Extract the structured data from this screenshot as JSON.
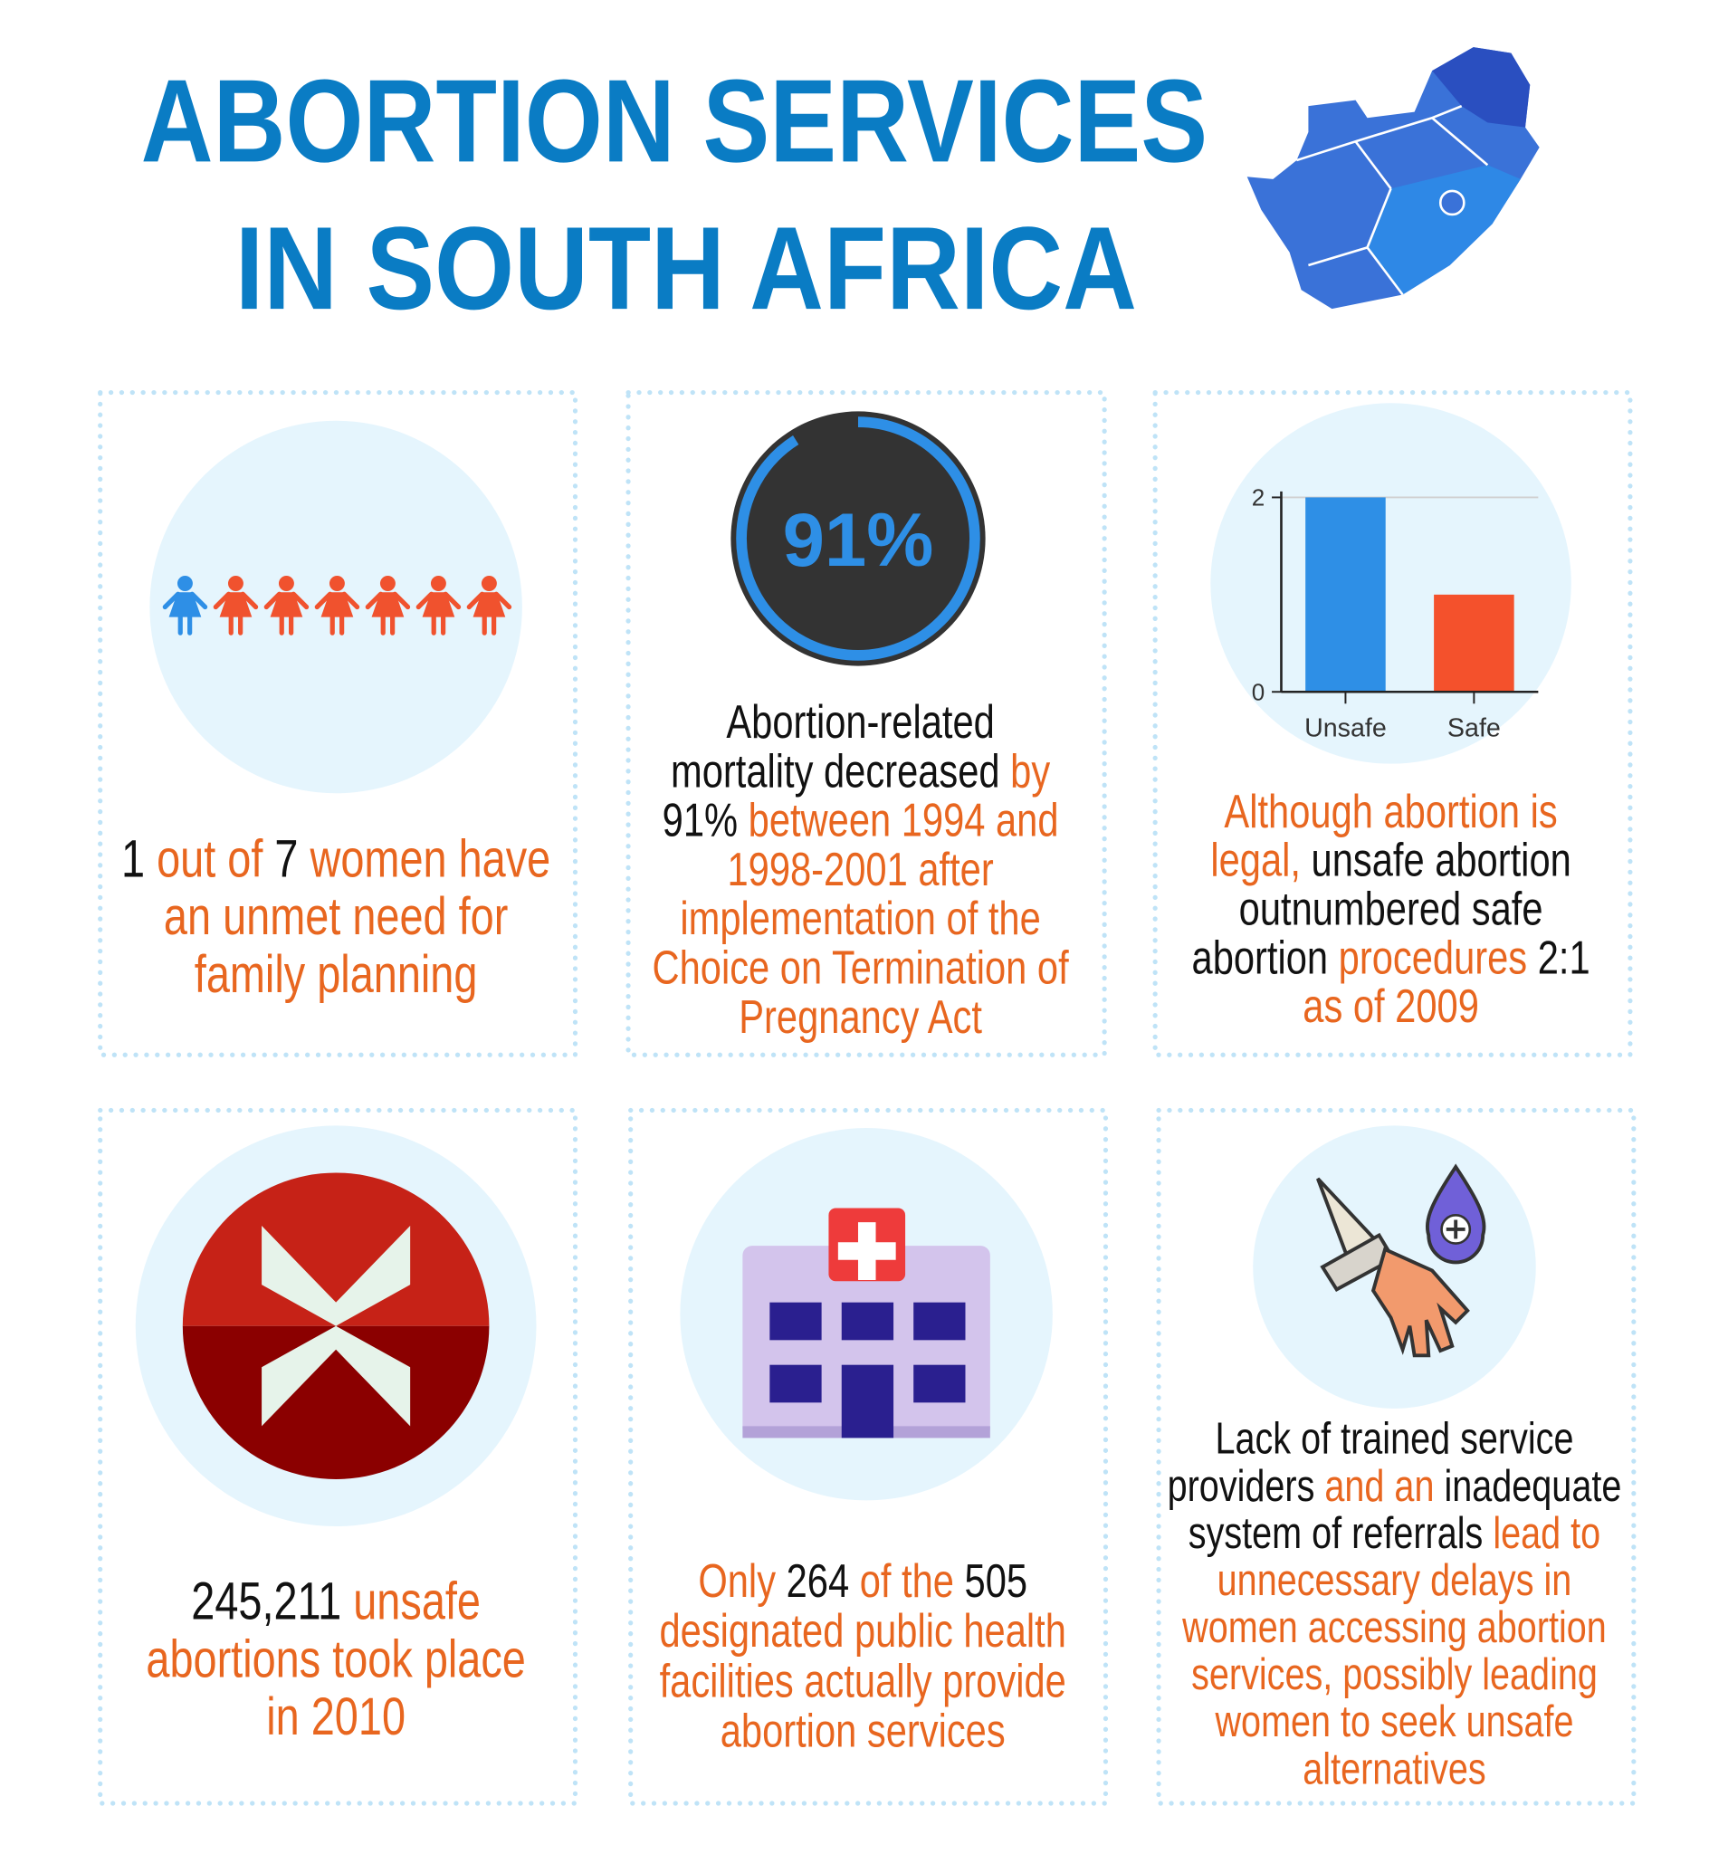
{
  "header": {
    "title": [
      "ABORTION SERVICES",
      "IN SOUTH AFRICA"
    ],
    "color": "#0a7cc4"
  },
  "cards": [
    {
      "figures": {
        "highlighted": 1,
        "total": 7,
        "colors": [
          "#2e8fe6",
          "#f0522e"
        ]
      },
      "text": [
        [
          {
            "t": "1",
            "c": "#111111"
          },
          {
            "t": " out of ",
            "c": "#e8661f"
          },
          {
            "t": "7",
            "c": "#111111"
          },
          {
            "t": " women have",
            "c": "#e8661f"
          }
        ],
        [
          {
            "t": "an unmet need for",
            "c": "#e8661f"
          }
        ],
        [
          {
            "t": "family planning",
            "c": "#e8661f"
          }
        ]
      ]
    },
    {
      "ring": {
        "label": "91%",
        "value": 91,
        "color": "#2e8fe6"
      },
      "text": [
        [
          {
            "t": "Abortion-related",
            "c": "#111111"
          }
        ],
        [
          {
            "t": "mortality decreased",
            "c": "#111111"
          },
          {
            "t": " by",
            "c": "#e8661f"
          }
        ],
        [
          {
            "t": "91%",
            "c": "#111111"
          },
          {
            "t": " between 1994 and",
            "c": "#e8661f"
          }
        ],
        [
          {
            "t": "1998-2001 after",
            "c": "#e8661f"
          }
        ],
        [
          {
            "t": "implementation of the",
            "c": "#e8661f"
          }
        ],
        [
          {
            "t": "Choice on Termination of",
            "c": "#e8661f"
          }
        ],
        [
          {
            "t": "Pregnancy Act",
            "c": "#e8661f"
          }
        ]
      ]
    },
    {
      "chart": {
        "type": "bar",
        "categories": [
          "Unsafe",
          "Safe"
        ],
        "values": [
          2,
          1
        ],
        "colors": [
          "#2e8fe6",
          "#f4512c"
        ],
        "ylim": [
          0,
          2
        ],
        "yticks": [
          0,
          2
        ],
        "grid": true
      },
      "text": [
        [
          {
            "t": "Although abortion is",
            "c": "#e8661f"
          }
        ],
        [
          {
            "t": "legal,",
            "c": "#e8661f"
          },
          {
            "t": " unsafe abortion",
            "c": "#111111"
          }
        ],
        [
          {
            "t": "outnumbered safe",
            "c": "#111111"
          }
        ],
        [
          {
            "t": "abortion",
            "c": "#111111"
          },
          {
            "t": " procedures",
            "c": "#e8661f"
          },
          {
            "t": " 2:1",
            "c": "#111111"
          }
        ],
        [
          {
            "t": "as of 2009",
            "c": "#e8661f"
          }
        ]
      ]
    },
    {
      "text": [
        [
          {
            "t": "245,211",
            "c": "#111111"
          },
          {
            "t": " unsafe",
            "c": "#e8661f"
          }
        ],
        [
          {
            "t": "abortions took place",
            "c": "#e8661f"
          }
        ],
        [
          {
            "t": "in 2010",
            "c": "#e8661f"
          }
        ]
      ]
    },
    {
      "text": [
        [
          {
            "t": "Only ",
            "c": "#e8661f"
          },
          {
            "t": "264",
            "c": "#111111"
          },
          {
            "t": " of the ",
            "c": "#e8661f"
          },
          {
            "t": "505",
            "c": "#111111"
          }
        ],
        [
          {
            "t": "designated public health",
            "c": "#e8661f"
          }
        ],
        [
          {
            "t": "facilities actually provide",
            "c": "#e8661f"
          }
        ],
        [
          {
            "t": "abortion services",
            "c": "#e8661f"
          }
        ]
      ]
    },
    {
      "text": [
        [
          {
            "t": "Lack of trained service",
            "c": "#111111"
          }
        ],
        [
          {
            "t": "providers",
            "c": "#111111"
          },
          {
            "t": " and an ",
            "c": "#e8661f"
          },
          {
            "t": "inadequate",
            "c": "#111111"
          }
        ],
        [
          {
            "t": "system of referrals",
            "c": "#111111"
          },
          {
            "t": " lead to",
            "c": "#e8661f"
          }
        ],
        [
          {
            "t": "unnecessary delays in",
            "c": "#e8661f"
          }
        ],
        [
          {
            "t": "women accessing abortion",
            "c": "#e8661f"
          }
        ],
        [
          {
            "t": "services, possibly leading",
            "c": "#e8661f"
          }
        ],
        [
          {
            "t": "women to seek unsafe",
            "c": "#e8661f"
          }
        ],
        [
          {
            "t": "alternatives",
            "c": "#e8661f"
          }
        ]
      ]
    }
  ]
}
